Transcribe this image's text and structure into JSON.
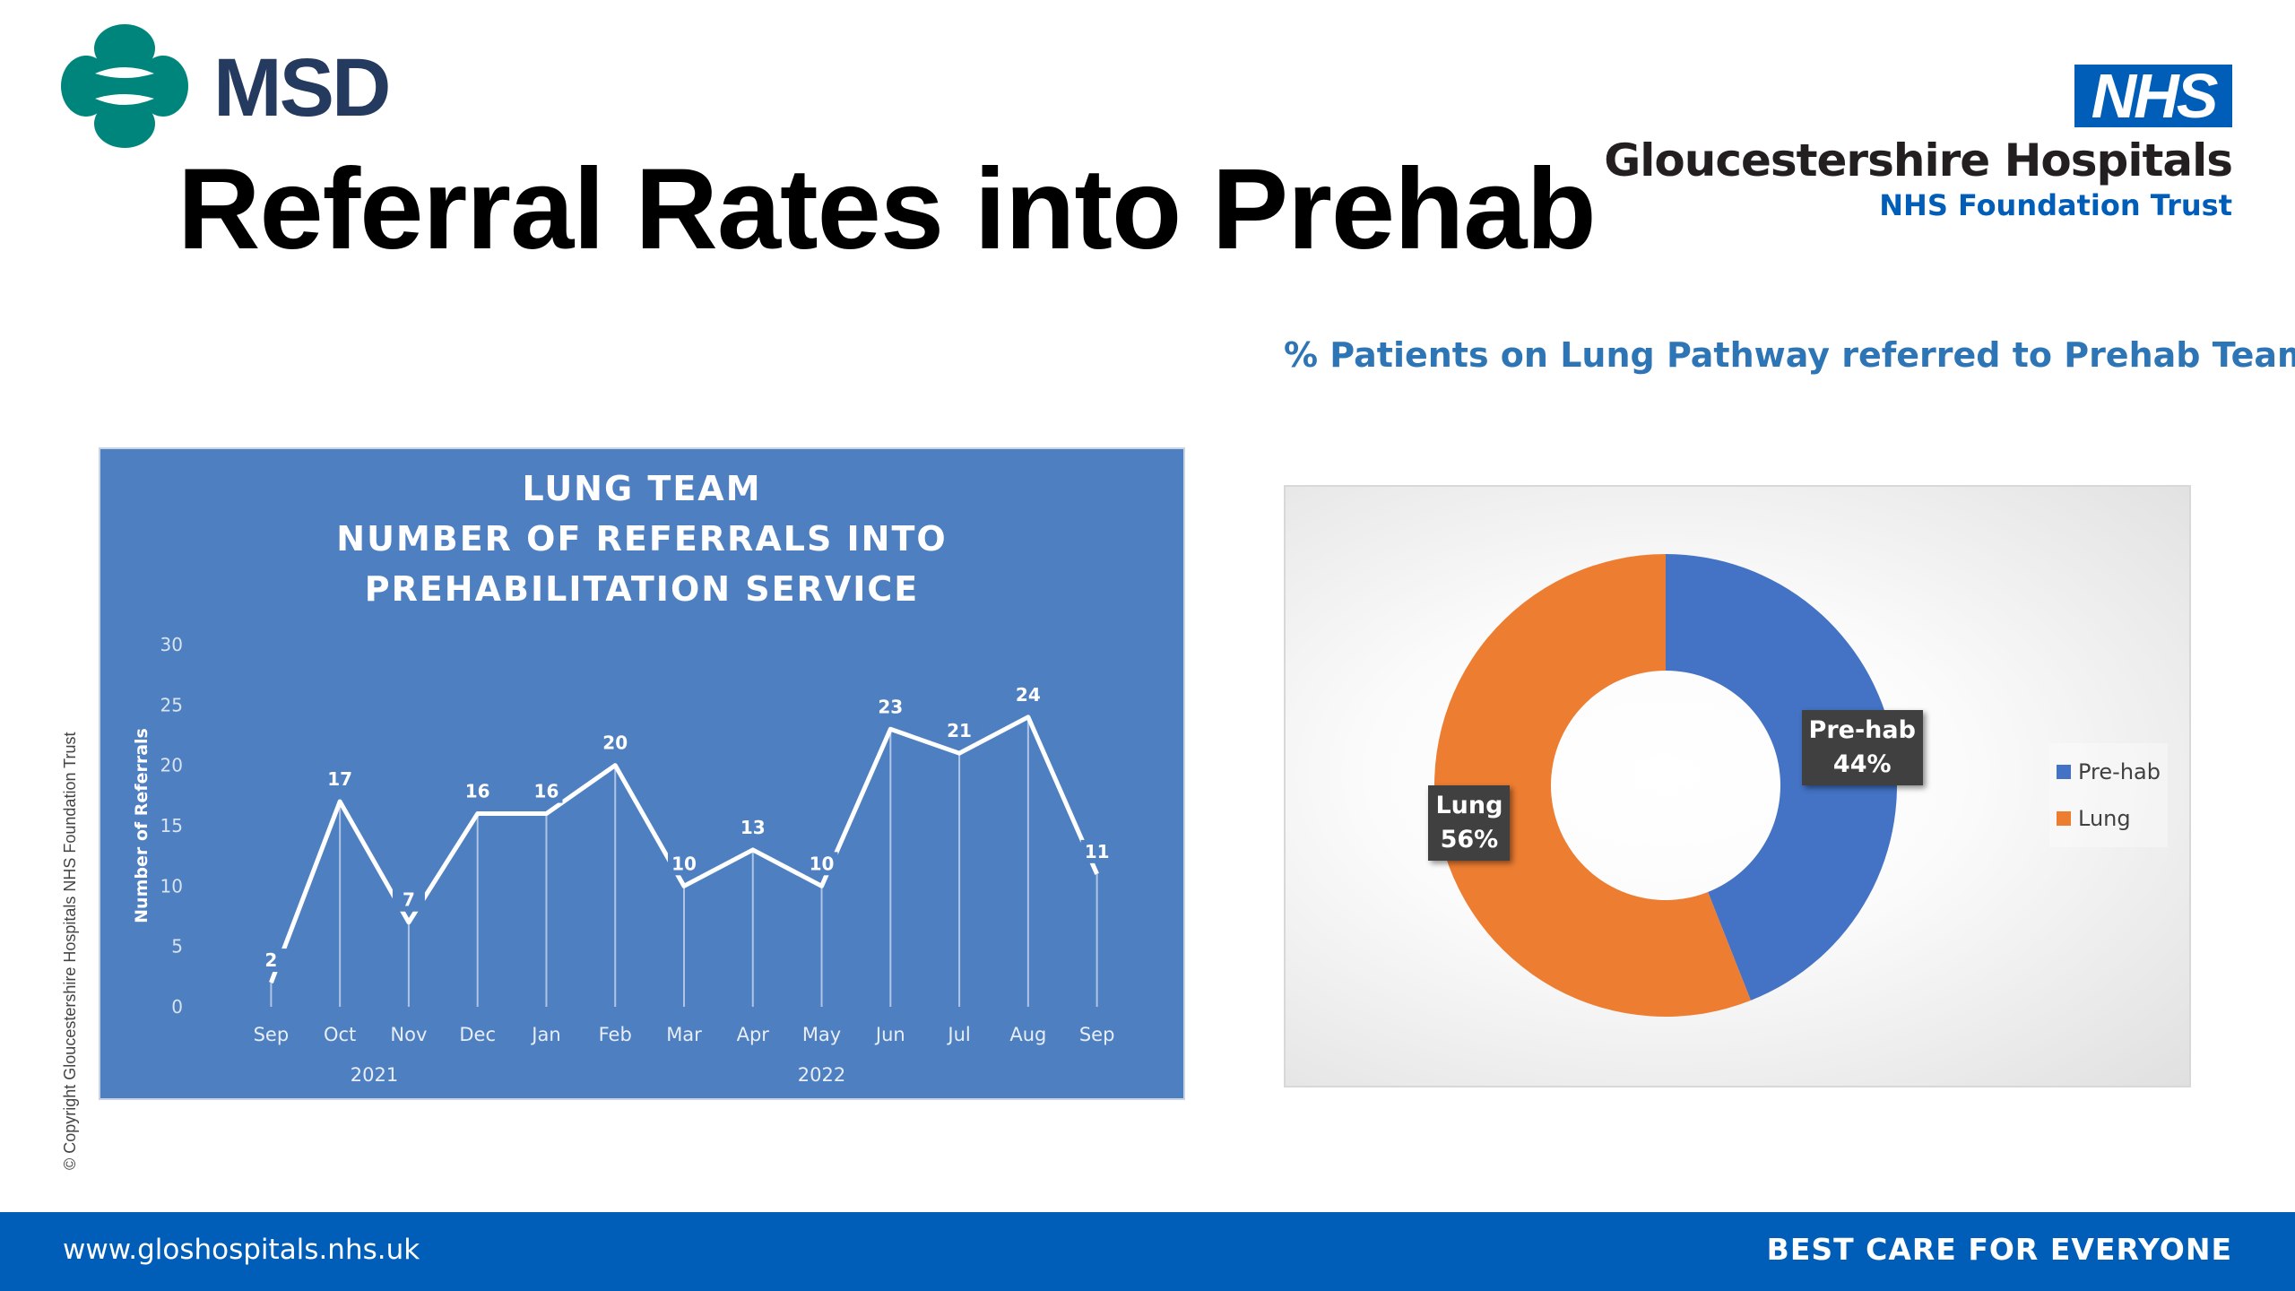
{
  "header": {
    "msd_logo_text": "MSD",
    "title": "Referral Rates into Prehab",
    "nhs_badge": "NHS",
    "trust_name": "Gloucestershire Hospitals",
    "trust_subtitle": "NHS Foundation Trust"
  },
  "copyright": "© Copyright Gloucestershire Hospitals NHS Foundation Trust",
  "pie_heading": "% Patients on Lung Pathway referred to Prehab Team:",
  "chart_data": [
    {
      "type": "line",
      "title_lines": [
        "LUNG TEAM",
        "NUMBER OF REFERRALS INTO",
        "PREHABILITATION SERVICE"
      ],
      "ylabel": "Number of Referrals",
      "xlabel": "",
      "categories": [
        "Sep",
        "Oct",
        "Nov",
        "Dec",
        "Jan",
        "Feb",
        "Mar",
        "Apr",
        "May",
        "Jun",
        "Jul",
        "Aug",
        "Sep"
      ],
      "year_groups": [
        {
          "label": "2021",
          "from": 0,
          "to": 3
        },
        {
          "label": "2022",
          "from": 4,
          "to": 12
        }
      ],
      "values": [
        2,
        17,
        7,
        16,
        16,
        20,
        10,
        13,
        10,
        23,
        21,
        24,
        11
      ],
      "ylim": [
        0,
        30
      ],
      "yticks": [
        0,
        5,
        10,
        15,
        20,
        25,
        30
      ],
      "grid": false,
      "drop_lines": true,
      "data_labels": true,
      "background_color": "#4e7fc1",
      "line_color": "#ffffff"
    },
    {
      "type": "pie",
      "variant": "doughnut",
      "labels": [
        "Pre-hab",
        "Lung"
      ],
      "values": [
        44,
        56
      ],
      "data_labels": [
        "Pre-hab\n44%",
        "Lung\n56%"
      ],
      "colors": [
        "#4472c4",
        "#ed7d31"
      ],
      "legend_position": "right"
    }
  ],
  "footer": {
    "url": "www.gloshospitals.nhs.uk",
    "tagline": "BEST CARE FOR EVERYONE"
  },
  "colors": {
    "nhs_blue": "#005eb8",
    "msd_teal": "#00857c",
    "msd_navy": "#243a5e"
  }
}
